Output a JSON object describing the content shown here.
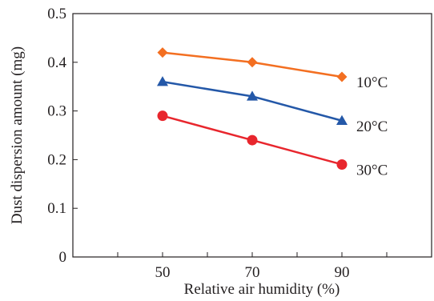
{
  "chart_data": {
    "type": "line",
    "xlabel": "Relative air humidity (%)",
    "ylabel": "Dust dispersion amount (mg)",
    "x": [
      50,
      70,
      90
    ],
    "x_ticks": [
      "50",
      "70",
      "90"
    ],
    "xlim": [
      30,
      110
    ],
    "ylim": [
      0,
      0.5
    ],
    "y_ticks": [
      "0",
      "0.1",
      "0.2",
      "0.3",
      "0.4",
      "0.5"
    ],
    "grid": false,
    "series": [
      {
        "name": "10°C",
        "values": [
          0.42,
          0.4,
          0.37
        ],
        "color": "#f36f21",
        "marker": "diamond"
      },
      {
        "name": "20°C",
        "values": [
          0.36,
          0.33,
          0.28
        ],
        "color": "#2458a8",
        "marker": "triangle"
      },
      {
        "name": "30°C",
        "values": [
          0.29,
          0.24,
          0.19
        ],
        "color": "#e8262d",
        "marker": "circle"
      }
    ]
  }
}
